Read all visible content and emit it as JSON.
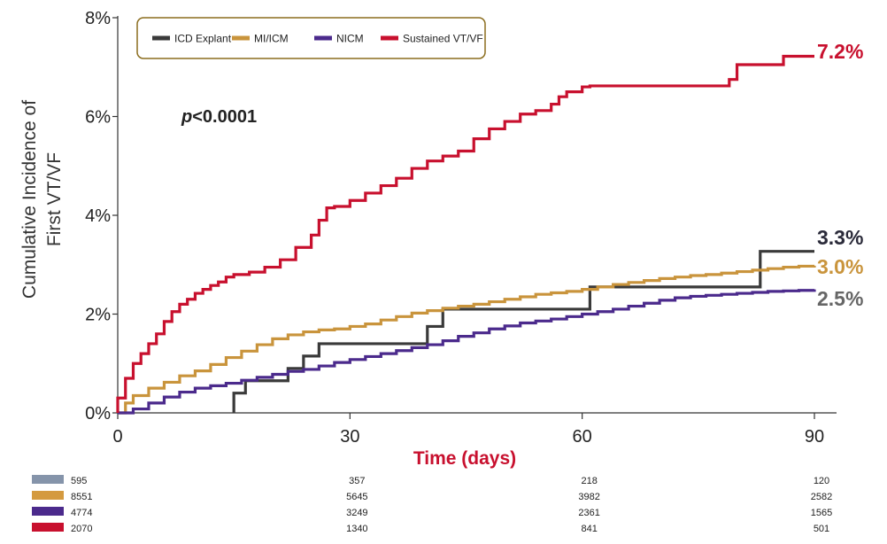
{
  "chart_data": {
    "type": "line",
    "step": true,
    "xlabel": "Time (days)",
    "ylabel_lines": [
      "Cumulative Incidence of",
      "First VT/VF"
    ],
    "xlim": [
      0,
      90
    ],
    "ylim": [
      0,
      8
    ],
    "x_ticks": [
      0,
      30,
      60,
      90
    ],
    "x_tick_labels": [
      "0",
      "30",
      "60",
      "90"
    ],
    "y_ticks": [
      0,
      2,
      4,
      6,
      8
    ],
    "y_tick_labels": [
      "0%",
      "2%",
      "4%",
      "6%",
      "8%"
    ],
    "annotation": {
      "p_prefix": "p",
      "p_rest": "<0.0001"
    },
    "legend_position": "top-left",
    "series": [
      {
        "name": "ICD Explant",
        "color": "#3a3a3a",
        "end_label": "3.3%",
        "end_label_color": "#2b2b3a",
        "points": [
          [
            15,
            0
          ],
          [
            15,
            0.4
          ],
          [
            16.5,
            0.4
          ],
          [
            16.5,
            0.65
          ],
          [
            22,
            0.65
          ],
          [
            22,
            0.9
          ],
          [
            24,
            0.9
          ],
          [
            24,
            1.15
          ],
          [
            26,
            1.15
          ],
          [
            26,
            1.4
          ],
          [
            40,
            1.4
          ],
          [
            40,
            1.75
          ],
          [
            42,
            1.75
          ],
          [
            42,
            2.1
          ],
          [
            61,
            2.1
          ],
          [
            61,
            2.55
          ],
          [
            83,
            2.55
          ],
          [
            83,
            3.27
          ],
          [
            90,
            3.27
          ]
        ]
      },
      {
        "name": "MI/ICM",
        "color": "#c9943c",
        "end_label": "3.0%",
        "end_label_color": "#c9943c",
        "points": [
          [
            0,
            0
          ],
          [
            1,
            0.2
          ],
          [
            2,
            0.35
          ],
          [
            4,
            0.5
          ],
          [
            6,
            0.62
          ],
          [
            8,
            0.75
          ],
          [
            10,
            0.85
          ],
          [
            12,
            0.98
          ],
          [
            14,
            1.12
          ],
          [
            16,
            1.25
          ],
          [
            18,
            1.38
          ],
          [
            20,
            1.5
          ],
          [
            22,
            1.58
          ],
          [
            24,
            1.64
          ],
          [
            26,
            1.68
          ],
          [
            28,
            1.7
          ],
          [
            30,
            1.75
          ],
          [
            32,
            1.8
          ],
          [
            34,
            1.88
          ],
          [
            36,
            1.95
          ],
          [
            38,
            2.02
          ],
          [
            40,
            2.07
          ],
          [
            42,
            2.12
          ],
          [
            44,
            2.16
          ],
          [
            46,
            2.2
          ],
          [
            48,
            2.25
          ],
          [
            50,
            2.3
          ],
          [
            52,
            2.35
          ],
          [
            54,
            2.4
          ],
          [
            56,
            2.43
          ],
          [
            58,
            2.46
          ],
          [
            60,
            2.5
          ],
          [
            62,
            2.55
          ],
          [
            64,
            2.6
          ],
          [
            66,
            2.64
          ],
          [
            68,
            2.68
          ],
          [
            70,
            2.72
          ],
          [
            72,
            2.75
          ],
          [
            74,
            2.78
          ],
          [
            76,
            2.8
          ],
          [
            78,
            2.83
          ],
          [
            80,
            2.86
          ],
          [
            82,
            2.89
          ],
          [
            84,
            2.92
          ],
          [
            86,
            2.95
          ],
          [
            88,
            2.97
          ],
          [
            90,
            2.98
          ]
        ]
      },
      {
        "name": "NICM",
        "color": "#4b2a8c",
        "end_label": "2.5%",
        "end_label_color": "#666666",
        "points": [
          [
            0,
            0
          ],
          [
            2,
            0.08
          ],
          [
            4,
            0.2
          ],
          [
            6,
            0.32
          ],
          [
            8,
            0.42
          ],
          [
            10,
            0.5
          ],
          [
            12,
            0.55
          ],
          [
            14,
            0.6
          ],
          [
            16,
            0.66
          ],
          [
            18,
            0.72
          ],
          [
            20,
            0.78
          ],
          [
            22,
            0.84
          ],
          [
            24,
            0.88
          ],
          [
            26,
            0.95
          ],
          [
            28,
            1.02
          ],
          [
            30,
            1.08
          ],
          [
            32,
            1.14
          ],
          [
            34,
            1.2
          ],
          [
            36,
            1.26
          ],
          [
            38,
            1.32
          ],
          [
            40,
            1.38
          ],
          [
            42,
            1.46
          ],
          [
            44,
            1.55
          ],
          [
            46,
            1.62
          ],
          [
            48,
            1.7
          ],
          [
            50,
            1.76
          ],
          [
            52,
            1.82
          ],
          [
            54,
            1.86
          ],
          [
            56,
            1.9
          ],
          [
            58,
            1.95
          ],
          [
            60,
            2.0
          ],
          [
            62,
            2.05
          ],
          [
            64,
            2.1
          ],
          [
            66,
            2.16
          ],
          [
            68,
            2.22
          ],
          [
            70,
            2.28
          ],
          [
            72,
            2.33
          ],
          [
            74,
            2.36
          ],
          [
            76,
            2.38
          ],
          [
            78,
            2.4
          ],
          [
            80,
            2.42
          ],
          [
            82,
            2.44
          ],
          [
            84,
            2.46
          ],
          [
            86,
            2.47
          ],
          [
            88,
            2.48
          ],
          [
            90,
            2.5
          ]
        ]
      },
      {
        "name": "Sustained VT/VF",
        "color": "#c8102e",
        "end_label": "7.2%",
        "end_label_color": "#c8102e",
        "points": [
          [
            0,
            0
          ],
          [
            0,
            0.3
          ],
          [
            1,
            0.7
          ],
          [
            2,
            1.0
          ],
          [
            3,
            1.2
          ],
          [
            4,
            1.4
          ],
          [
            5,
            1.6
          ],
          [
            6,
            1.85
          ],
          [
            7,
            2.05
          ],
          [
            8,
            2.2
          ],
          [
            9,
            2.3
          ],
          [
            10,
            2.42
          ],
          [
            11,
            2.5
          ],
          [
            12,
            2.58
          ],
          [
            13,
            2.65
          ],
          [
            14,
            2.75
          ],
          [
            15,
            2.8
          ],
          [
            17,
            2.85
          ],
          [
            19,
            2.95
          ],
          [
            21,
            3.1
          ],
          [
            23,
            3.35
          ],
          [
            25,
            3.6
          ],
          [
            26,
            3.9
          ],
          [
            27,
            4.15
          ],
          [
            28,
            4.18
          ],
          [
            30,
            4.3
          ],
          [
            32,
            4.45
          ],
          [
            34,
            4.6
          ],
          [
            36,
            4.75
          ],
          [
            38,
            4.95
          ],
          [
            40,
            5.1
          ],
          [
            42,
            5.2
          ],
          [
            44,
            5.3
          ],
          [
            46,
            5.55
          ],
          [
            48,
            5.75
          ],
          [
            50,
            5.9
          ],
          [
            52,
            6.05
          ],
          [
            54,
            6.12
          ],
          [
            56,
            6.25
          ],
          [
            57,
            6.4
          ],
          [
            58,
            6.5
          ],
          [
            60,
            6.6
          ],
          [
            61,
            6.62
          ],
          [
            65,
            6.62
          ],
          [
            70,
            6.62
          ],
          [
            78,
            6.62
          ],
          [
            79,
            6.75
          ],
          [
            80,
            7.05
          ],
          [
            85,
            7.05
          ],
          [
            86,
            7.22
          ],
          [
            90,
            7.22
          ]
        ]
      }
    ],
    "risk_table": {
      "times": [
        0,
        30,
        60,
        90
      ],
      "rows": [
        {
          "color": "#8594aa",
          "values": [
            "595",
            "357",
            "218",
            "120"
          ]
        },
        {
          "color": "#d49a3f",
          "values": [
            "8551",
            "5645",
            "3982",
            "2582"
          ]
        },
        {
          "color": "#4b2a8c",
          "values": [
            "4774",
            "3249",
            "2361",
            "1565"
          ]
        },
        {
          "color": "#c8102e",
          "values": [
            "2070",
            "1340",
            "841",
            "501"
          ]
        }
      ]
    }
  }
}
